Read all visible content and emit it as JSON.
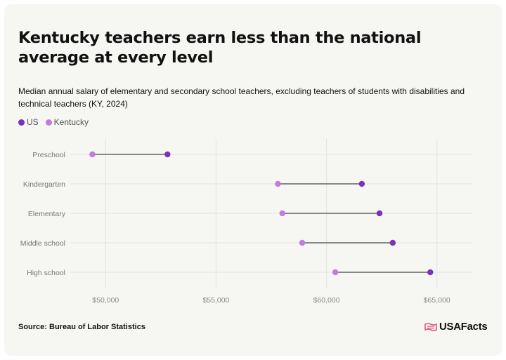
{
  "title": "Kentucky teachers earn less than the national average at every level",
  "subtitle": "Median annual salary of elementary and secondary school teachers, excluding teachers of students with disabilities and technical teachers (KY, 2024)",
  "source": "Source: Bureau of Labor Statistics",
  "logo_text": "USAFacts",
  "colors": {
    "us": "#7d2fbd",
    "kentucky": "#c27be0",
    "connector": "#888888",
    "grid": "#e3e3df"
  },
  "chart_data": {
    "type": "dumbbell",
    "categories": [
      "Preschool",
      "Kindergarten",
      "Elementary",
      "Middle school",
      "High school"
    ],
    "series": [
      {
        "name": "US",
        "values": [
          52800,
          61600,
          62400,
          63000,
          64700
        ]
      },
      {
        "name": "Kentucky",
        "values": [
          49400,
          57800,
          58000,
          58900,
          60400
        ]
      }
    ],
    "xticks": [
      50000,
      55000,
      60000,
      65000
    ],
    "xtick_labels": [
      "$50,000",
      "$55,000",
      "$60,000",
      "$65,000"
    ],
    "xlim": [
      48400,
      66600
    ],
    "legend": "top-left",
    "grid": true
  }
}
